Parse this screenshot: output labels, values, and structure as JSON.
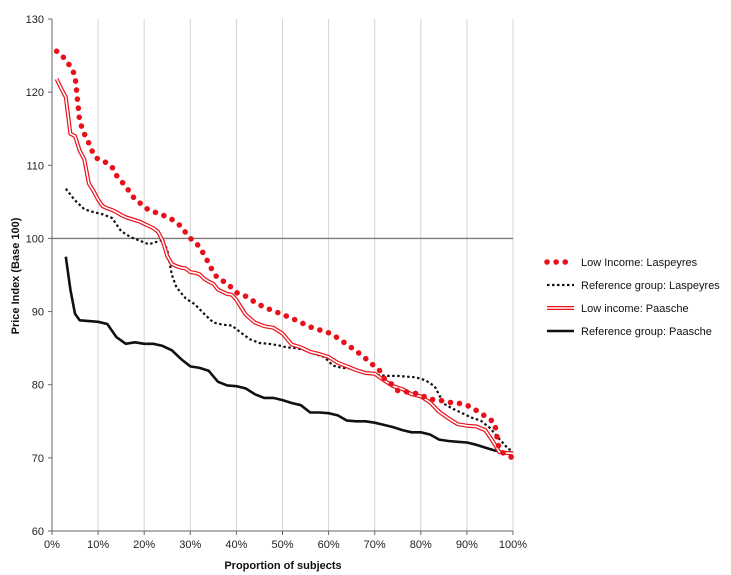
{
  "chart_data": {
    "type": "line",
    "title": "",
    "xlabel": "Proportion of subjects",
    "ylabel": "Price Index (Base 100)",
    "xlim": [
      0,
      100
    ],
    "ylim": [
      60,
      130
    ],
    "xticks": [
      0,
      10,
      20,
      30,
      40,
      50,
      60,
      70,
      80,
      90,
      100
    ],
    "xtick_labels": [
      "0%",
      "10%",
      "20%",
      "30%",
      "40%",
      "50%",
      "60%",
      "70%",
      "80%",
      "90%",
      "100%"
    ],
    "yticks": [
      60,
      70,
      80,
      90,
      100,
      110,
      120,
      130
    ],
    "ytick_labels": [
      "60",
      "70",
      "80",
      "90",
      "100",
      "110",
      "120",
      "130"
    ],
    "grid": "vertical",
    "reference_line": 100,
    "legend_position": "right",
    "series": [
      {
        "name": "Low Income: Laspeyres",
        "style": "dotted-thick",
        "color": "#e8111b",
        "points": [
          [
            1,
            125.6
          ],
          [
            2,
            125.1
          ],
          [
            3,
            124.4
          ],
          [
            4,
            123.5
          ],
          [
            5,
            122.3
          ],
          [
            6,
            116
          ],
          [
            7,
            114.3
          ],
          [
            8,
            113
          ],
          [
            9,
            111.5
          ],
          [
            10,
            110.8
          ],
          [
            11,
            110.6
          ],
          [
            12,
            110.3
          ],
          [
            13,
            109.8
          ],
          [
            14,
            108.6
          ],
          [
            15,
            107.9
          ],
          [
            16,
            107
          ],
          [
            17,
            106.3
          ],
          [
            18,
            105.3
          ],
          [
            19,
            104.9
          ],
          [
            20,
            104.3
          ],
          [
            21,
            103.9
          ],
          [
            22,
            103.6
          ],
          [
            23,
            103.5
          ],
          [
            24,
            103.2
          ],
          [
            25,
            102.9
          ],
          [
            26,
            102.6
          ],
          [
            27,
            102.2
          ],
          [
            28,
            101.6
          ],
          [
            29,
            100.8
          ],
          [
            30,
            100
          ],
          [
            31,
            99.6
          ],
          [
            32,
            98.8
          ],
          [
            33,
            97.8
          ],
          [
            34,
            96.6
          ],
          [
            35,
            95.4
          ],
          [
            36,
            94.5
          ],
          [
            37,
            94.2
          ],
          [
            38,
            93.9
          ],
          [
            39,
            93.2
          ],
          [
            40,
            92.6
          ],
          [
            42,
            92.1
          ],
          [
            44,
            91.3
          ],
          [
            46,
            90.6
          ],
          [
            48,
            90.1
          ],
          [
            50,
            89.6
          ],
          [
            52,
            89.1
          ],
          [
            54,
            88.5
          ],
          [
            56,
            87.9
          ],
          [
            58,
            87.5
          ],
          [
            60,
            87.1
          ],
          [
            62,
            86.4
          ],
          [
            64,
            85.5
          ],
          [
            66,
            84.6
          ],
          [
            68,
            83.6
          ],
          [
            70,
            82.5
          ],
          [
            71,
            82
          ],
          [
            72,
            80.9
          ],
          [
            73,
            80.5
          ],
          [
            75,
            79.2
          ],
          [
            77,
            79
          ],
          [
            79,
            78.8
          ],
          [
            80,
            78.6
          ],
          [
            82,
            78
          ],
          [
            84,
            77.9
          ],
          [
            86,
            77.6
          ],
          [
            88,
            77.5
          ],
          [
            90,
            77.2
          ],
          [
            92,
            76.5
          ],
          [
            94,
            75.7
          ],
          [
            96,
            74.8
          ],
          [
            97,
            71.1
          ],
          [
            98,
            70.6
          ],
          [
            99,
            70.3
          ],
          [
            100,
            70
          ]
        ]
      },
      {
        "name": "Reference group: Laspeyres",
        "style": "dotted",
        "color": "#111111",
        "points": [
          [
            3,
            106.8
          ],
          [
            5,
            105.2
          ],
          [
            7,
            104
          ],
          [
            9,
            103.6
          ],
          [
            11,
            103.3
          ],
          [
            13,
            102.8
          ],
          [
            15,
            101
          ],
          [
            17,
            100.2
          ],
          [
            19,
            99.7
          ],
          [
            21,
            99.2
          ],
          [
            23,
            99.6
          ],
          [
            24,
            99.8
          ],
          [
            25,
            98.4
          ],
          [
            26,
            95
          ],
          [
            27,
            93.3
          ],
          [
            29,
            91.8
          ],
          [
            31,
            91
          ],
          [
            33,
            89.7
          ],
          [
            35,
            88.5
          ],
          [
            37,
            88.2
          ],
          [
            39,
            88.1
          ],
          [
            41,
            87.1
          ],
          [
            43,
            86.2
          ],
          [
            45,
            85.7
          ],
          [
            47,
            85.6
          ],
          [
            49,
            85.4
          ],
          [
            51,
            85.1
          ],
          [
            53,
            85
          ],
          [
            55,
            84.7
          ],
          [
            57,
            84.2
          ],
          [
            59,
            83.8
          ],
          [
            61,
            82.6
          ],
          [
            63,
            82.3
          ],
          [
            65,
            82.2
          ],
          [
            67,
            81.9
          ],
          [
            69,
            81.5
          ],
          [
            71,
            81.3
          ],
          [
            73,
            81.2
          ],
          [
            75,
            81.2
          ],
          [
            77,
            81.1
          ],
          [
            79,
            81
          ],
          [
            81,
            80.6
          ],
          [
            83,
            79.8
          ],
          [
            85,
            77.4
          ],
          [
            87,
            76.7
          ],
          [
            89,
            76.1
          ],
          [
            91,
            75.5
          ],
          [
            93,
            75.1
          ],
          [
            95,
            74.1
          ],
          [
            97,
            72.6
          ],
          [
            99,
            71.2
          ],
          [
            100,
            71
          ]
        ]
      },
      {
        "name": "Low income: Paasche",
        "style": "double",
        "color": "#e8111b",
        "points": [
          [
            1,
            121.8
          ],
          [
            2,
            120.5
          ],
          [
            3,
            119.3
          ],
          [
            4,
            114.3
          ],
          [
            5,
            114
          ],
          [
            6,
            112
          ],
          [
            7,
            110.8
          ],
          [
            8,
            107.5
          ],
          [
            9,
            106.5
          ],
          [
            10,
            105.3
          ],
          [
            11,
            104.4
          ],
          [
            12,
            104.1
          ],
          [
            13,
            103.9
          ],
          [
            14,
            103.6
          ],
          [
            15,
            103.2
          ],
          [
            16,
            102.9
          ],
          [
            17,
            102.7
          ],
          [
            18,
            102.5
          ],
          [
            19,
            102.3
          ],
          [
            20,
            102
          ],
          [
            21,
            101.7
          ],
          [
            22,
            101.4
          ],
          [
            23,
            100.9
          ],
          [
            24,
            99.7
          ],
          [
            25,
            97.6
          ],
          [
            26,
            96.5
          ],
          [
            27,
            96.2
          ],
          [
            28,
            96
          ],
          [
            29,
            95.9
          ],
          [
            30,
            95.4
          ],
          [
            31,
            95.3
          ],
          [
            32,
            95.1
          ],
          [
            33,
            94.5
          ],
          [
            34,
            94.1
          ],
          [
            35,
            93.8
          ],
          [
            36,
            93
          ],
          [
            37,
            92.7
          ],
          [
            38,
            92.4
          ],
          [
            39,
            92.3
          ],
          [
            40,
            91.6
          ],
          [
            42,
            89.6
          ],
          [
            44,
            88.5
          ],
          [
            46,
            88
          ],
          [
            48,
            87.8
          ],
          [
            50,
            87
          ],
          [
            52,
            85.5
          ],
          [
            54,
            85.1
          ],
          [
            56,
            84.5
          ],
          [
            58,
            84.2
          ],
          [
            60,
            83.8
          ],
          [
            62,
            83
          ],
          [
            64,
            82.5
          ],
          [
            66,
            82
          ],
          [
            68,
            81.6
          ],
          [
            70,
            81.5
          ],
          [
            72,
            80.6
          ],
          [
            74,
            79.8
          ],
          [
            76,
            79.4
          ],
          [
            78,
            78.7
          ],
          [
            80,
            78.4
          ],
          [
            82,
            77.6
          ],
          [
            84,
            76.3
          ],
          [
            86,
            75.4
          ],
          [
            88,
            74.6
          ],
          [
            90,
            74.4
          ],
          [
            92,
            74.3
          ],
          [
            94,
            73.8
          ],
          [
            96,
            71.9
          ],
          [
            97,
            70.8
          ],
          [
            98,
            70.7
          ],
          [
            100,
            70.6
          ]
        ]
      },
      {
        "name": "Reference group: Paasche",
        "style": "solid",
        "color": "#111111",
        "points": [
          [
            3,
            97.5
          ],
          [
            4,
            93
          ],
          [
            5,
            89.7
          ],
          [
            6,
            88.8
          ],
          [
            8,
            88.7
          ],
          [
            10,
            88.6
          ],
          [
            12,
            88.3
          ],
          [
            14,
            86.5
          ],
          [
            16,
            85.6
          ],
          [
            18,
            85.8
          ],
          [
            20,
            85.6
          ],
          [
            22,
            85.6
          ],
          [
            24,
            85.3
          ],
          [
            26,
            84.7
          ],
          [
            28,
            83.5
          ],
          [
            30,
            82.5
          ],
          [
            32,
            82.3
          ],
          [
            34,
            81.9
          ],
          [
            36,
            80.4
          ],
          [
            38,
            79.9
          ],
          [
            40,
            79.8
          ],
          [
            42,
            79.5
          ],
          [
            44,
            78.7
          ],
          [
            46,
            78.2
          ],
          [
            48,
            78.2
          ],
          [
            50,
            77.9
          ],
          [
            52,
            77.5
          ],
          [
            54,
            77.2
          ],
          [
            56,
            76.2
          ],
          [
            58,
            76.2
          ],
          [
            60,
            76.1
          ],
          [
            62,
            75.8
          ],
          [
            64,
            75.1
          ],
          [
            66,
            75
          ],
          [
            68,
            75
          ],
          [
            70,
            74.8
          ],
          [
            72,
            74.5
          ],
          [
            74,
            74.2
          ],
          [
            76,
            73.8
          ],
          [
            78,
            73.5
          ],
          [
            80,
            73.5
          ],
          [
            82,
            73.2
          ],
          [
            84,
            72.5
          ],
          [
            86,
            72.3
          ],
          [
            88,
            72.2
          ],
          [
            90,
            72.1
          ],
          [
            92,
            71.8
          ],
          [
            94,
            71.4
          ],
          [
            96,
            71
          ],
          [
            98,
            70.8
          ],
          [
            100,
            70.7
          ]
        ]
      }
    ]
  }
}
